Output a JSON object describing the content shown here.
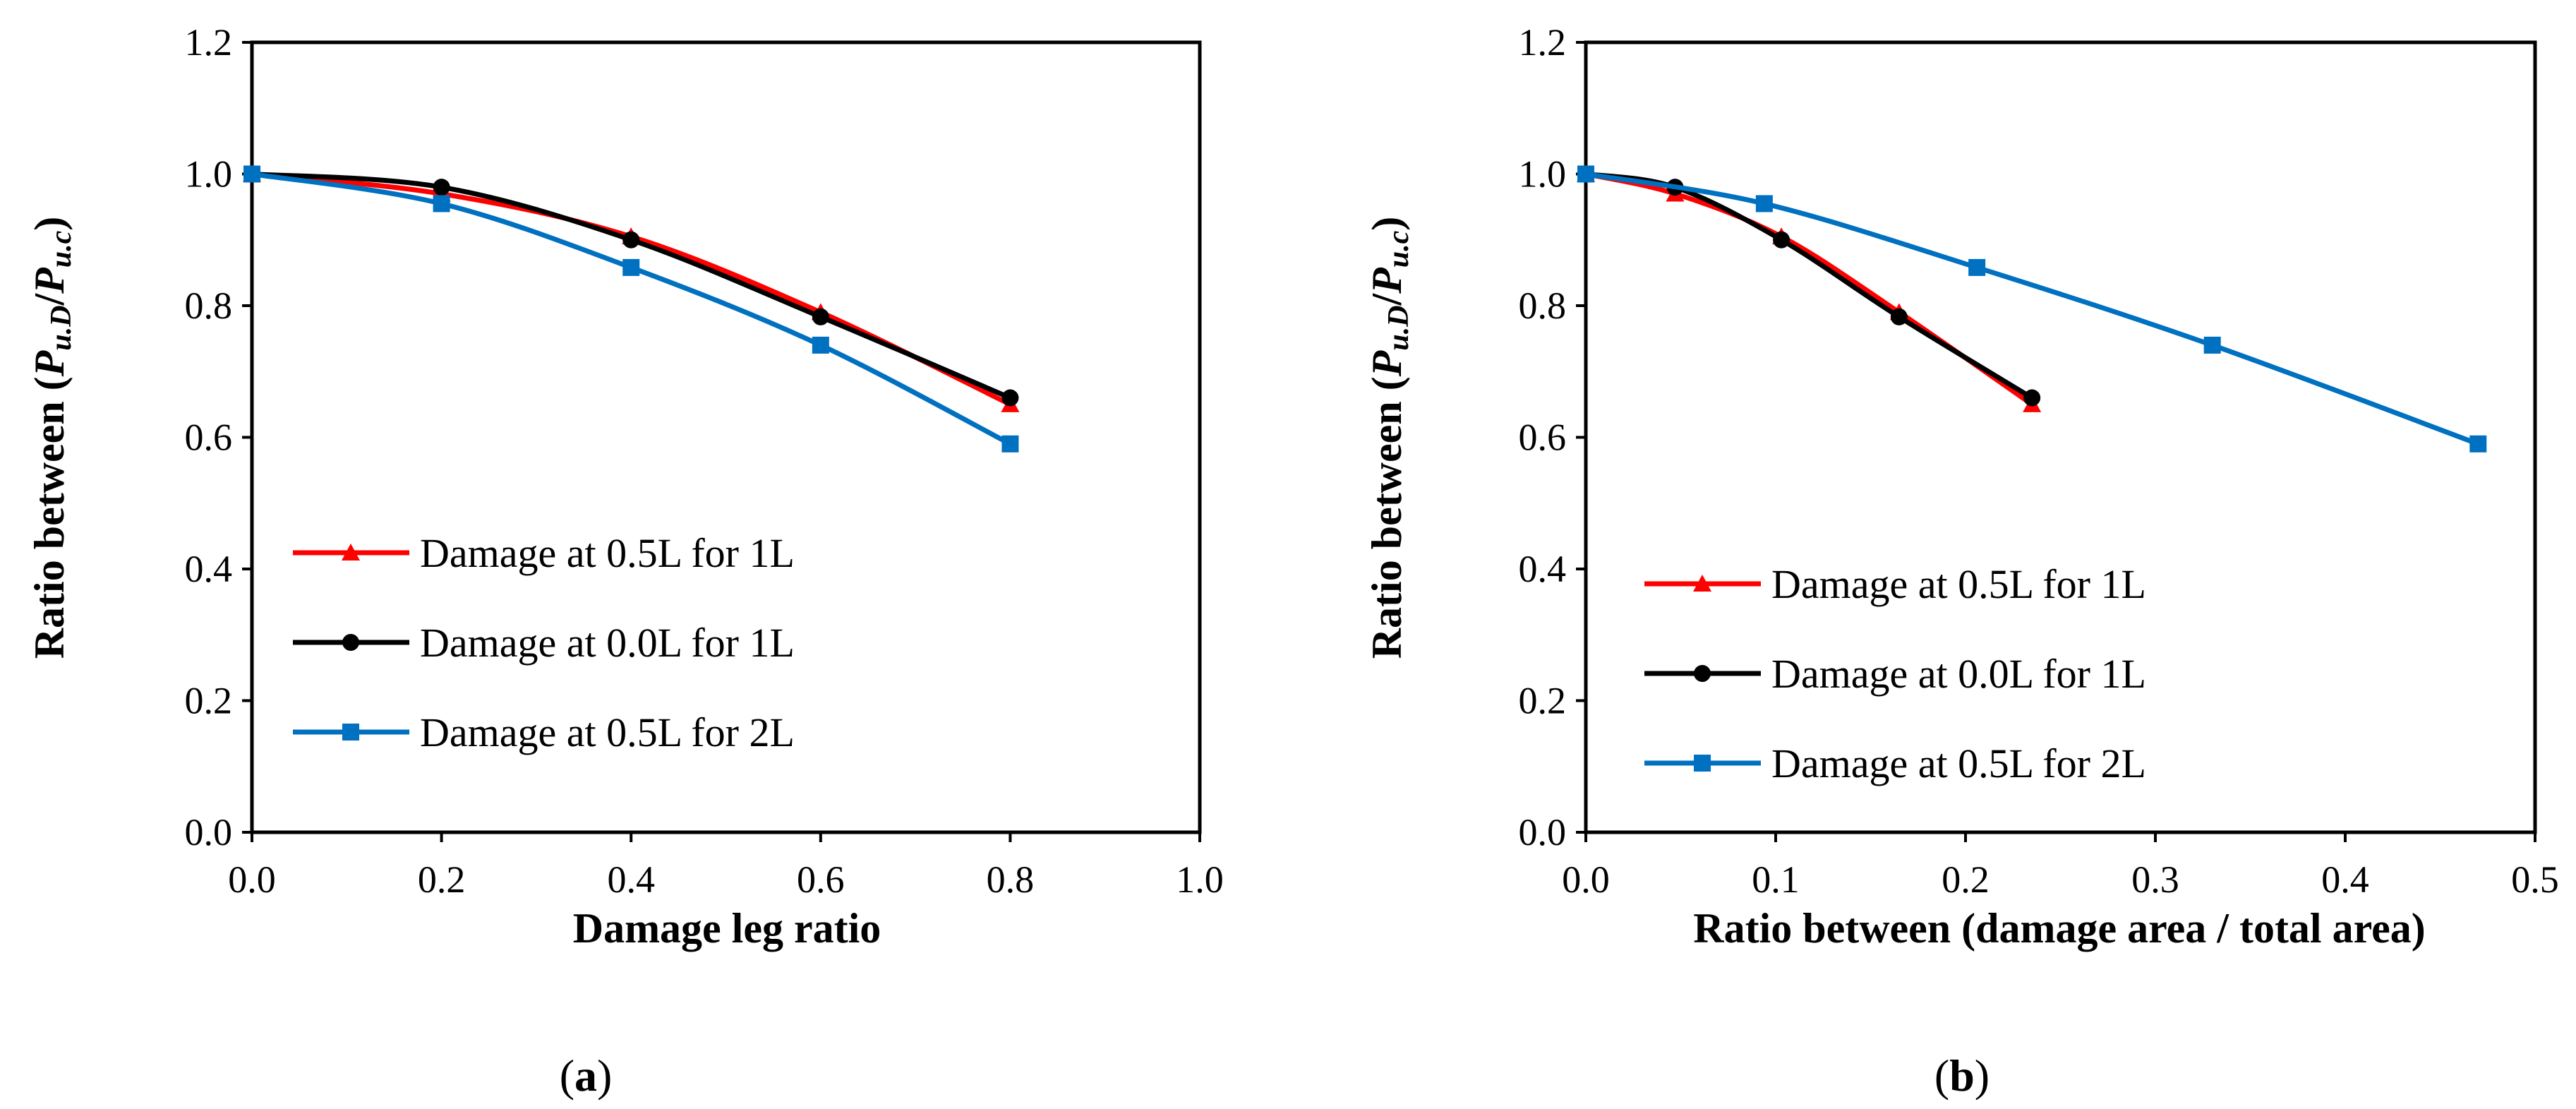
{
  "chart_data": [
    {
      "type": "line",
      "title": "",
      "caption_letter": "a",
      "xlabel": "Damage leg ratio",
      "ylabel_prefix": "Ratio between (",
      "ylabel_p1": "P",
      "ylabel_s1": "u.D",
      "ylabel_slash": "/",
      "ylabel_p2": "P",
      "ylabel_s2": "u.c",
      "ylabel_suffix": ")",
      "xlim": [
        0,
        1.0
      ],
      "ylim": [
        0,
        1.2
      ],
      "xticks": [
        "0.0",
        "0.2",
        "0.4",
        "0.6",
        "0.8",
        "1.0"
      ],
      "yticks": [
        "0.0",
        "0.2",
        "0.4",
        "0.6",
        "0.8",
        "1.0",
        "1.2"
      ],
      "grid": false,
      "legend_position": "lower-left",
      "series": [
        {
          "name": "Damage at 0.5L for 1L",
          "color": "#ff0000",
          "marker": "triangle",
          "x": [
            0.0,
            0.2,
            0.4,
            0.6,
            0.8
          ],
          "y": [
            1.0,
            0.97,
            0.905,
            0.79,
            0.65
          ]
        },
        {
          "name": "Damage at 0.0L for 1L",
          "color": "#000000",
          "marker": "circle",
          "x": [
            0.0,
            0.2,
            0.4,
            0.6,
            0.8
          ],
          "y": [
            1.0,
            0.98,
            0.9,
            0.783,
            0.66
          ]
        },
        {
          "name": "Damage at 0.5L for 2L",
          "color": "#0070c0",
          "marker": "square",
          "x": [
            0.0,
            0.2,
            0.4,
            0.6,
            0.8
          ],
          "y": [
            1.0,
            0.955,
            0.858,
            0.74,
            0.59
          ]
        }
      ]
    },
    {
      "type": "line",
      "title": "",
      "caption_letter": "b",
      "xlabel": "Ratio between (damage area / total area)",
      "ylabel_prefix": "Ratio between (",
      "ylabel_p1": "P",
      "ylabel_s1": "u.D",
      "ylabel_slash": "/",
      "ylabel_p2": "P",
      "ylabel_s2": "u.c",
      "ylabel_suffix": ")",
      "xlim": [
        0,
        0.5
      ],
      "ylim": [
        0,
        1.2
      ],
      "xticks": [
        "0.0",
        "0.1",
        "0.2",
        "0.3",
        "0.4",
        "0.5"
      ],
      "yticks": [
        "0.0",
        "0.2",
        "0.4",
        "0.6",
        "0.8",
        "1.0",
        "1.2"
      ],
      "grid": false,
      "legend_position": "lower-left",
      "series": [
        {
          "name": "Damage at 0.5L for 1L",
          "color": "#ff0000",
          "marker": "triangle",
          "x": [
            0.0,
            0.047,
            0.103,
            0.165,
            0.235
          ],
          "y": [
            1.0,
            0.97,
            0.905,
            0.79,
            0.65
          ]
        },
        {
          "name": "Damage at 0.0L for 1L",
          "color": "#000000",
          "marker": "circle",
          "x": [
            0.0,
            0.047,
            0.103,
            0.165,
            0.235
          ],
          "y": [
            1.0,
            0.98,
            0.9,
            0.783,
            0.66
          ]
        },
        {
          "name": "Damage at 0.5L for 2L",
          "color": "#0070c0",
          "marker": "square",
          "x": [
            0.0,
            0.094,
            0.206,
            0.33,
            0.47
          ],
          "y": [
            1.0,
            0.955,
            0.858,
            0.74,
            0.59
          ]
        }
      ]
    }
  ]
}
